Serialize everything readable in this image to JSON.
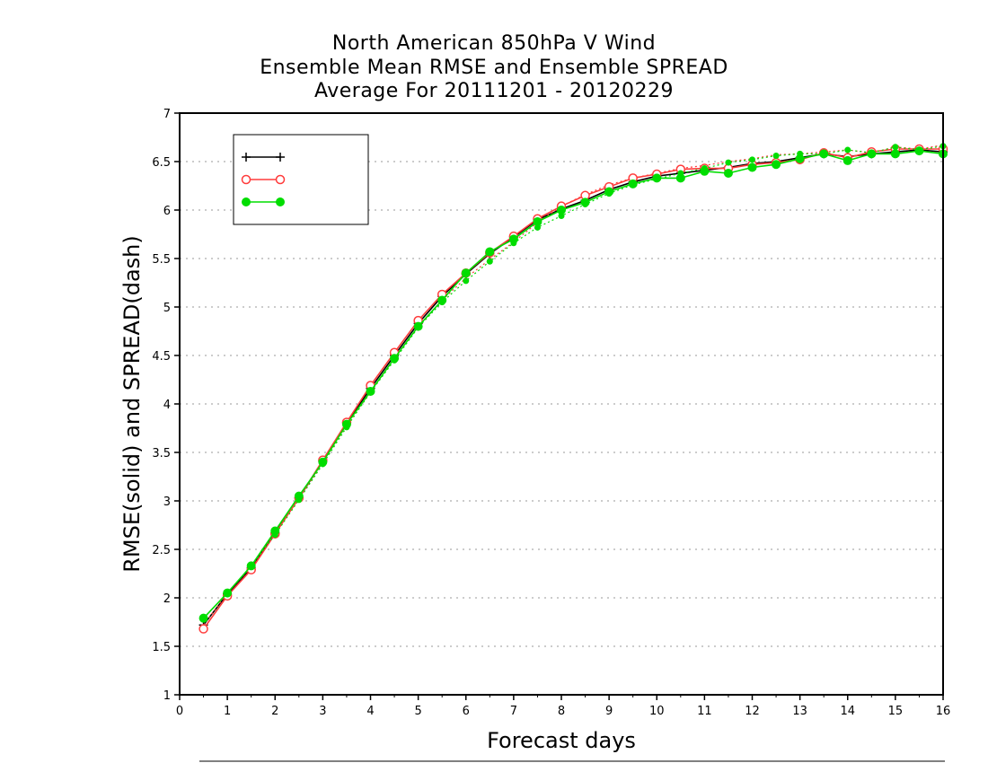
{
  "chart_data": {
    "type": "line",
    "title": [
      "North American 850hPa V Wind",
      "Ensemble Mean RMSE and Ensemble SPREAD",
      "Average For 20111201 - 20120229"
    ],
    "xlabel": "Forecast days",
    "ylabel": "RMSE(solid) and SPREAD(dash)",
    "xlim": [
      0,
      16
    ],
    "ylim": [
      1,
      7
    ],
    "xticks": [
      0,
      1,
      2,
      3,
      4,
      5,
      6,
      7,
      8,
      9,
      10,
      11,
      12,
      13,
      14,
      15,
      16
    ],
    "yticks": [
      1,
      1.5,
      2,
      2.5,
      3,
      3.5,
      4,
      4.5,
      5,
      5.5,
      6,
      6.5,
      7
    ],
    "ytick_labels": [
      "1",
      "1.5",
      "2",
      "2.5",
      "3",
      "3.5",
      "4",
      "4.5",
      "5",
      "5.5",
      "6",
      "6.5",
      "7"
    ],
    "grid": "horizontal dotted",
    "legend_position": "top-left",
    "x": [
      0.5,
      1,
      1.5,
      2,
      2.5,
      3,
      3.5,
      4,
      4.5,
      5,
      5.5,
      6,
      6.5,
      7,
      7.5,
      8,
      8.5,
      9,
      9.5,
      10,
      10.5,
      11,
      11.5,
      12,
      12.5,
      13,
      13.5,
      14,
      14.5,
      15,
      15.5,
      16
    ],
    "series": [
      {
        "name": "",
        "color": "#000000",
        "marker": "plus",
        "rmse": [
          1.72,
          2.04,
          2.31,
          2.67,
          3.03,
          3.41,
          3.8,
          4.16,
          4.5,
          4.83,
          5.11,
          5.34,
          5.55,
          5.72,
          5.9,
          6.01,
          6.1,
          6.21,
          6.29,
          6.35,
          6.38,
          6.41,
          6.44,
          6.48,
          6.5,
          6.54,
          6.58,
          6.55,
          6.58,
          6.6,
          6.62,
          6.6
        ],
        "spread": null
      },
      {
        "name": "",
        "color": "#ff3b3b",
        "marker": "open-circle",
        "rmse": [
          1.68,
          2.02,
          2.29,
          2.66,
          3.03,
          3.42,
          3.81,
          4.19,
          4.53,
          4.86,
          5.13,
          5.35,
          5.56,
          5.73,
          5.91,
          6.04,
          6.15,
          6.24,
          6.33,
          6.37,
          6.42,
          6.43,
          6.43,
          6.47,
          6.49,
          6.52,
          6.59,
          6.54,
          6.6,
          6.63,
          6.63,
          6.63
        ],
        "spread": [
          1.72,
          2.05,
          2.32,
          2.68,
          3.02,
          3.39,
          3.78,
          4.12,
          4.47,
          4.79,
          5.07,
          5.3,
          5.49,
          5.67,
          5.87,
          6.04,
          6.16,
          6.26,
          6.33,
          6.38,
          6.43,
          6.46,
          6.5,
          6.53,
          6.57,
          6.58,
          6.6,
          6.62,
          6.59,
          6.65,
          6.63,
          6.67
        ]
      },
      {
        "name": "",
        "color": "#00dd00",
        "marker": "filled-circle",
        "rmse": [
          1.79,
          2.05,
          2.33,
          2.69,
          3.05,
          3.4,
          3.79,
          4.13,
          4.47,
          4.8,
          5.07,
          5.35,
          5.57,
          5.7,
          5.88,
          6.0,
          6.08,
          6.19,
          6.27,
          6.33,
          6.33,
          6.4,
          6.38,
          6.44,
          6.47,
          6.53,
          6.58,
          6.51,
          6.58,
          6.58,
          6.61,
          6.58
        ],
        "spread": [
          1.79,
          2.05,
          2.33,
          2.65,
          3.01,
          3.38,
          3.76,
          4.12,
          4.45,
          4.79,
          5.05,
          5.27,
          5.47,
          5.66,
          5.82,
          5.94,
          6.06,
          6.17,
          6.26,
          6.32,
          6.38,
          6.43,
          6.49,
          6.52,
          6.56,
          6.58,
          6.58,
          6.62,
          6.59,
          6.65,
          6.62,
          6.66
        ]
      }
    ]
  }
}
